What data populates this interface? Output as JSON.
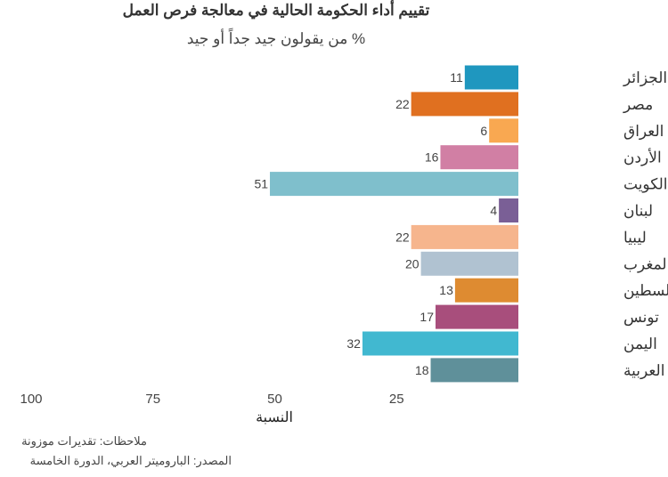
{
  "chart_data": {
    "type": "bar",
    "orientation": "horizontal",
    "title": "تقييم أداء الحكومة الحالية في معالجة فرص العمل",
    "subtitle": "% من يقولون جيد جداً أو جيد",
    "xlabel": "النسبة",
    "ylabel": "",
    "xlim": [
      0,
      100
    ],
    "x_reversed": true,
    "xticks": [
      100,
      75,
      50,
      25
    ],
    "grid": false,
    "categories": [
      "الجزائر",
      "مصر",
      "العراق",
      "الأردن",
      "الكويت",
      "لبنان",
      "ليبيا",
      "المغرب",
      "فلسطين",
      "تونس",
      "اليمن",
      "الدول العربية"
    ],
    "values": [
      11,
      22,
      6,
      16,
      51,
      4,
      22,
      20,
      13,
      17,
      32,
      18
    ],
    "colors": [
      "#1f97bf",
      "#e07020",
      "#f9a851",
      "#d17fa4",
      "#7fbfcc",
      "#7a5f96",
      "#f6b58d",
      "#b0c2d1",
      "#de8b31",
      "#a84e7c",
      "#41b8d0",
      "#5f909a"
    ]
  },
  "notes": {
    "note": "ملاحظات: تقديرات موزونة",
    "source": "المصدر: الباروميتر العربي، الدورة الخامسة"
  }
}
